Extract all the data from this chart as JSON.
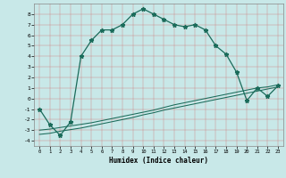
{
  "xlabel": "Humidex (Indice chaleur)",
  "bg_color": "#c8e8e8",
  "grid_color": "#b0c8c8",
  "line_color": "#1a6b5a",
  "xlim": [
    -0.5,
    23.5
  ],
  "ylim": [
    -4.5,
    9.0
  ],
  "xticks": [
    0,
    1,
    2,
    3,
    4,
    5,
    6,
    7,
    8,
    9,
    10,
    11,
    12,
    13,
    14,
    15,
    16,
    17,
    18,
    19,
    20,
    21,
    22,
    23
  ],
  "yticks": [
    -4,
    -3,
    -2,
    -1,
    0,
    1,
    2,
    3,
    4,
    5,
    6,
    7,
    8
  ],
  "curve1_x": [
    0,
    1,
    2,
    3,
    4,
    5,
    6,
    7,
    8,
    9,
    10,
    11,
    12,
    13,
    14,
    15,
    16,
    17,
    18,
    19,
    20,
    21,
    22,
    23
  ],
  "curve1_y": [
    -1.0,
    -2.5,
    -3.5,
    -2.2,
    4.0,
    5.5,
    6.5,
    6.5,
    7.0,
    8.0,
    8.5,
    8.0,
    7.5,
    7.0,
    6.8,
    7.0,
    6.5,
    5.0,
    4.2,
    2.5,
    -0.2,
    1.0,
    0.2,
    1.2
  ],
  "curve2_x": [
    0,
    1,
    2,
    3,
    4,
    5,
    6,
    7,
    8,
    9,
    10,
    11,
    12,
    13,
    14,
    15,
    16,
    17,
    18,
    19,
    20,
    21,
    22,
    23
  ],
  "curve2_y": [
    -3.0,
    -2.9,
    -2.75,
    -2.6,
    -2.45,
    -2.3,
    -2.1,
    -1.9,
    -1.7,
    -1.5,
    -1.3,
    -1.1,
    -0.85,
    -0.6,
    -0.4,
    -0.2,
    0.0,
    0.2,
    0.4,
    0.6,
    0.8,
    1.0,
    1.1,
    1.3
  ],
  "curve3_x": [
    0,
    1,
    2,
    3,
    4,
    5,
    6,
    7,
    8,
    9,
    10,
    11,
    12,
    13,
    14,
    15,
    16,
    17,
    18,
    19,
    20,
    21,
    22,
    23
  ],
  "curve3_y": [
    -3.4,
    -3.3,
    -3.1,
    -2.95,
    -2.8,
    -2.6,
    -2.4,
    -2.2,
    -2.0,
    -1.8,
    -1.55,
    -1.35,
    -1.1,
    -0.9,
    -0.7,
    -0.5,
    -0.3,
    -0.1,
    0.1,
    0.3,
    0.5,
    0.7,
    0.9,
    1.1
  ]
}
